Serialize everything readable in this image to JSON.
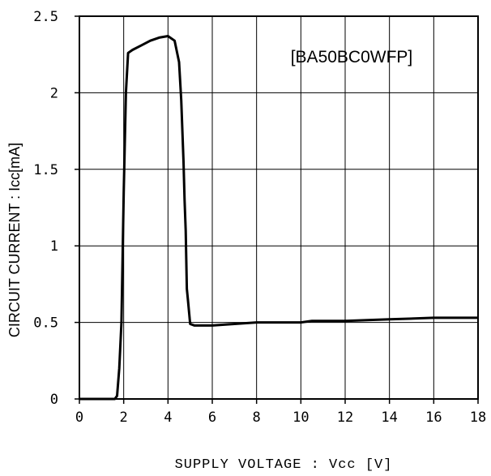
{
  "chart_data": {
    "type": "line",
    "annotation": "[BA50BC0WFP]",
    "xlabel": "SUPPLY VOLTAGE : Vcc [V]",
    "ylabel": "CIRCUIT CURRENT : Icc[mA]",
    "xlim": [
      0,
      18
    ],
    "ylim": [
      0,
      2.5
    ],
    "x_ticks": [
      0,
      2,
      4,
      6,
      8,
      10,
      12,
      14,
      16,
      18
    ],
    "x_tick_labels": [
      "0",
      "2",
      "4",
      "6",
      "8",
      "10",
      "12",
      "14",
      "16",
      "18"
    ],
    "y_ticks": [
      0,
      0.5,
      1,
      1.5,
      2,
      2.5
    ],
    "y_tick_labels": [
      "0",
      "0.5",
      "1",
      "1.5",
      "2",
      "2.5"
    ],
    "grid": true,
    "series": [
      {
        "x": [
          0,
          1.6,
          1.7,
          1.8,
          1.9,
          2.0,
          2.1,
          2.2,
          2.4,
          2.8,
          3.2,
          3.6,
          4.0,
          4.3,
          4.5,
          4.6,
          4.7,
          4.75,
          4.8,
          4.85,
          4.9,
          5.0,
          5.2,
          6.0,
          8.0,
          10.0,
          10.5,
          12.0,
          14.0,
          16.0,
          18.0
        ],
        "y": [
          0,
          0,
          0.02,
          0.2,
          0.5,
          1.35,
          2.0,
          2.26,
          2.28,
          2.31,
          2.34,
          2.36,
          2.37,
          2.34,
          2.2,
          1.95,
          1.55,
          1.3,
          1.1,
          0.72,
          0.65,
          0.49,
          0.48,
          0.48,
          0.5,
          0.5,
          0.51,
          0.51,
          0.52,
          0.53,
          0.53
        ]
      }
    ]
  }
}
